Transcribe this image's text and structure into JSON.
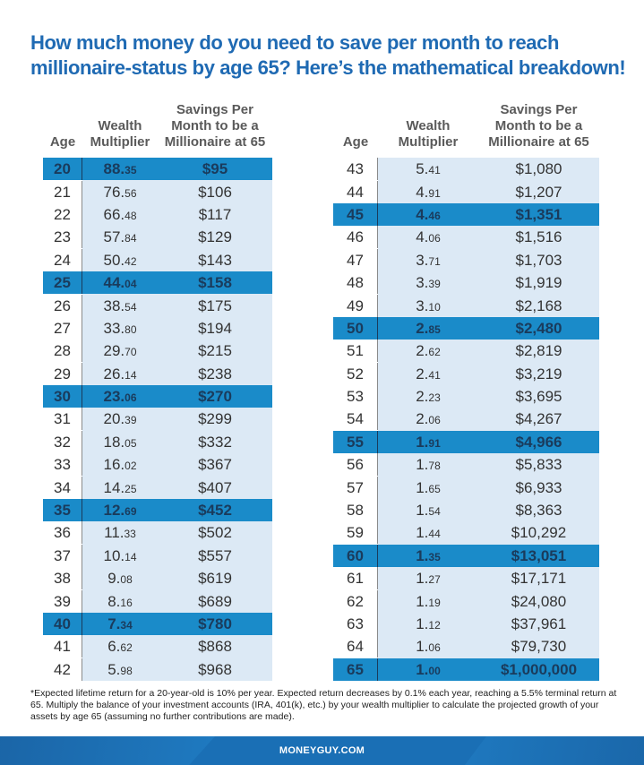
{
  "title": "How much money do you need to save per month to reach millionaire-status by age 65? Here’s the mathematical breakdown!",
  "headers": {
    "age": "Age",
    "multiplier_line1": "Wealth",
    "multiplier_line2": "Multiplier",
    "savings_line1": "Savings Per",
    "savings_line2": "Month to be a",
    "savings_line3": "Millionaire at 65"
  },
  "colors": {
    "title": "#1f6ab3",
    "highlight_row": "#1a8bc9",
    "column_shade": "#dce9f5",
    "footer": "#1a6fb5"
  },
  "left_table": [
    {
      "age": "20",
      "mult_int": "88.",
      "mult_dec": "35",
      "savings": "$95",
      "highlight": true
    },
    {
      "age": "21",
      "mult_int": "76.",
      "mult_dec": "56",
      "savings": "$106",
      "highlight": false
    },
    {
      "age": "22",
      "mult_int": "66.",
      "mult_dec": "48",
      "savings": "$117",
      "highlight": false
    },
    {
      "age": "23",
      "mult_int": "57.",
      "mult_dec": "84",
      "savings": "$129",
      "highlight": false
    },
    {
      "age": "24",
      "mult_int": "50.",
      "mult_dec": "42",
      "savings": "$143",
      "highlight": false
    },
    {
      "age": "25",
      "mult_int": "44.",
      "mult_dec": "04",
      "savings": "$158",
      "highlight": true
    },
    {
      "age": "26",
      "mult_int": "38.",
      "mult_dec": "54",
      "savings": "$175",
      "highlight": false
    },
    {
      "age": "27",
      "mult_int": "33.",
      "mult_dec": "80",
      "savings": "$194",
      "highlight": false
    },
    {
      "age": "28",
      "mult_int": "29.",
      "mult_dec": "70",
      "savings": "$215",
      "highlight": false
    },
    {
      "age": "29",
      "mult_int": "26.",
      "mult_dec": "14",
      "savings": "$238",
      "highlight": false
    },
    {
      "age": "30",
      "mult_int": "23.",
      "mult_dec": "06",
      "savings": "$270",
      "highlight": true
    },
    {
      "age": "31",
      "mult_int": "20.",
      "mult_dec": "39",
      "savings": "$299",
      "highlight": false
    },
    {
      "age": "32",
      "mult_int": "18.",
      "mult_dec": "05",
      "savings": "$332",
      "highlight": false
    },
    {
      "age": "33",
      "mult_int": "16.",
      "mult_dec": "02",
      "savings": "$367",
      "highlight": false
    },
    {
      "age": "34",
      "mult_int": "14.",
      "mult_dec": "25",
      "savings": "$407",
      "highlight": false
    },
    {
      "age": "35",
      "mult_int": "12.",
      "mult_dec": "69",
      "savings": "$452",
      "highlight": true
    },
    {
      "age": "36",
      "mult_int": "11.",
      "mult_dec": "33",
      "savings": "$502",
      "highlight": false
    },
    {
      "age": "37",
      "mult_int": "10.",
      "mult_dec": "14",
      "savings": "$557",
      "highlight": false
    },
    {
      "age": "38",
      "mult_int": "9.",
      "mult_dec": "08",
      "savings": "$619",
      "highlight": false
    },
    {
      "age": "39",
      "mult_int": "8.",
      "mult_dec": "16",
      "savings": "$689",
      "highlight": false
    },
    {
      "age": "40",
      "mult_int": "7.",
      "mult_dec": "34",
      "savings": "$780",
      "highlight": true
    },
    {
      "age": "41",
      "mult_int": "6.",
      "mult_dec": "62",
      "savings": "$868",
      "highlight": false
    },
    {
      "age": "42",
      "mult_int": "5.",
      "mult_dec": "98",
      "savings": "$968",
      "highlight": false
    }
  ],
  "right_table": [
    {
      "age": "43",
      "mult_int": "5.",
      "mult_dec": "41",
      "savings": "$1,080",
      "highlight": false
    },
    {
      "age": "44",
      "mult_int": "4.",
      "mult_dec": "91",
      "savings": "$1,207",
      "highlight": false
    },
    {
      "age": "45",
      "mult_int": "4.",
      "mult_dec": "46",
      "savings": "$1,351",
      "highlight": true
    },
    {
      "age": "46",
      "mult_int": "4.",
      "mult_dec": "06",
      "savings": "$1,516",
      "highlight": false
    },
    {
      "age": "47",
      "mult_int": "3.",
      "mult_dec": "71",
      "savings": "$1,703",
      "highlight": false
    },
    {
      "age": "48",
      "mult_int": "3.",
      "mult_dec": "39",
      "savings": "$1,919",
      "highlight": false
    },
    {
      "age": "49",
      "mult_int": "3.",
      "mult_dec": "10",
      "savings": "$2,168",
      "highlight": false
    },
    {
      "age": "50",
      "mult_int": "2.",
      "mult_dec": "85",
      "savings": "$2,480",
      "highlight": true
    },
    {
      "age": "51",
      "mult_int": "2.",
      "mult_dec": "62",
      "savings": "$2,819",
      "highlight": false
    },
    {
      "age": "52",
      "mult_int": "2.",
      "mult_dec": "41",
      "savings": "$3,219",
      "highlight": false
    },
    {
      "age": "53",
      "mult_int": "2.",
      "mult_dec": "23",
      "savings": "$3,695",
      "highlight": false
    },
    {
      "age": "54",
      "mult_int": "2.",
      "mult_dec": "06",
      "savings": "$4,267",
      "highlight": false
    },
    {
      "age": "55",
      "mult_int": "1.",
      "mult_dec": "91",
      "savings": "$4,966",
      "highlight": true
    },
    {
      "age": "56",
      "mult_int": "1.",
      "mult_dec": "78",
      "savings": "$5,833",
      "highlight": false
    },
    {
      "age": "57",
      "mult_int": "1.",
      "mult_dec": "65",
      "savings": "$6,933",
      "highlight": false
    },
    {
      "age": "58",
      "mult_int": "1.",
      "mult_dec": "54",
      "savings": "$8,363",
      "highlight": false
    },
    {
      "age": "59",
      "mult_int": "1.",
      "mult_dec": "44",
      "savings": "$10,292",
      "highlight": false
    },
    {
      "age": "60",
      "mult_int": "1.",
      "mult_dec": "35",
      "savings": "$13,051",
      "highlight": true
    },
    {
      "age": "61",
      "mult_int": "1.",
      "mult_dec": "27",
      "savings": "$17,171",
      "highlight": false
    },
    {
      "age": "62",
      "mult_int": "1.",
      "mult_dec": "19",
      "savings": "$24,080",
      "highlight": false
    },
    {
      "age": "63",
      "mult_int": "1.",
      "mult_dec": "12",
      "savings": "$37,961",
      "highlight": false
    },
    {
      "age": "64",
      "mult_int": "1.",
      "mult_dec": "06",
      "savings": "$79,730",
      "highlight": false
    },
    {
      "age": "65",
      "mult_int": "1.",
      "mult_dec": "00",
      "savings": "$1,000,000",
      "highlight": true
    }
  ],
  "footnote": "*Expected lifetime return for a 20-year-old is 10% per year. Expected return decreases by 0.1% each year, reaching a 5.5% terminal return at 65. Multiply the balance of your investment accounts (IRA, 401(k), etc.) by your wealth multiplier to calculate the projected growth of your assets by age 65 (assuming no further contributions are made).",
  "footer_brand": "MONEYGUY.COM"
}
